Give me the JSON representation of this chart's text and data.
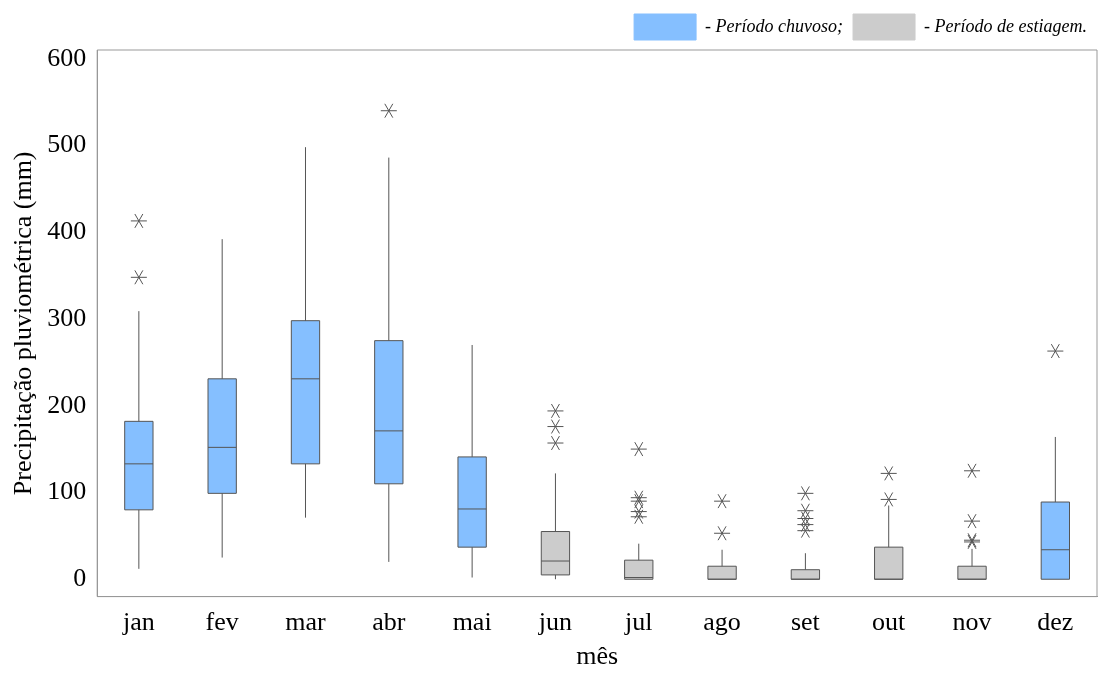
{
  "chart_data": {
    "type": "box",
    "xlabel": "mês",
    "ylabel": "Precipitação pluviométrica (mm)",
    "categories": [
      "jan",
      "fev",
      "mar",
      "abr",
      "mai",
      "jun",
      "jul",
      "ago",
      "set",
      "out",
      "nov",
      "dez"
    ],
    "ylim": [
      -20,
      610
    ],
    "yticks": [
      0,
      100,
      200,
      300,
      400,
      500,
      600
    ],
    "grid": false,
    "legend": "top right",
    "marker": "star",
    "series": [
      {
        "name": "- Período chuvoso;",
        "color": "#85bfff",
        "boxes": [
          {
            "low": 12,
            "q1": 80,
            "median": 133,
            "q3": 182,
            "high": 309,
            "outliers": [
              348,
              413
            ]
          },
          {
            "low": 25,
            "q1": 99,
            "median": 152,
            "q3": 231,
            "high": 392
          },
          {
            "low": 71,
            "q1": 133,
            "median": 231,
            "q3": 298,
            "high": 498
          },
          {
            "low": 20,
            "q1": 110,
            "median": 171,
            "q3": 275,
            "high": 486,
            "outliers": [
              540
            ]
          },
          {
            "low": 2,
            "q1": 37,
            "median": 81,
            "q3": 141,
            "high": 270
          },
          null,
          null,
          null,
          null,
          null,
          null,
          {
            "low": 0,
            "q1": 0,
            "median": 34,
            "q3": 89,
            "high": 164,
            "outliers": [
              263
            ]
          }
        ]
      },
      {
        "name": "- Período de estiagem.",
        "color": "#cccccc",
        "boxes": [
          null,
          null,
          null,
          null,
          null,
          {
            "low": 0,
            "q1": 5,
            "median": 21,
            "q3": 55,
            "high": 122,
            "outliers": [
              157,
              176,
              194
            ]
          },
          {
            "low": 0,
            "q1": 0,
            "median": 2,
            "q3": 22,
            "high": 41,
            "outliers": [
              72,
              78,
              90,
              94,
              150
            ]
          },
          {
            "low": 0,
            "q1": 0,
            "median": 0,
            "q3": 15,
            "high": 34,
            "outliers": [
              53,
              90
            ]
          },
          {
            "low": 0,
            "q1": 0,
            "median": 0,
            "q3": 11,
            "high": 30,
            "outliers": [
              56,
              63,
              70,
              79,
              99
            ]
          },
          {
            "low": 0,
            "q1": 0,
            "median": 0,
            "q3": 37,
            "high": 85,
            "outliers": [
              92,
              122
            ]
          },
          {
            "low": 0,
            "q1": 0,
            "median": 0,
            "q3": 15,
            "high": 35,
            "outliers": [
              43,
              45,
              67,
              125
            ]
          },
          null
        ]
      }
    ]
  }
}
